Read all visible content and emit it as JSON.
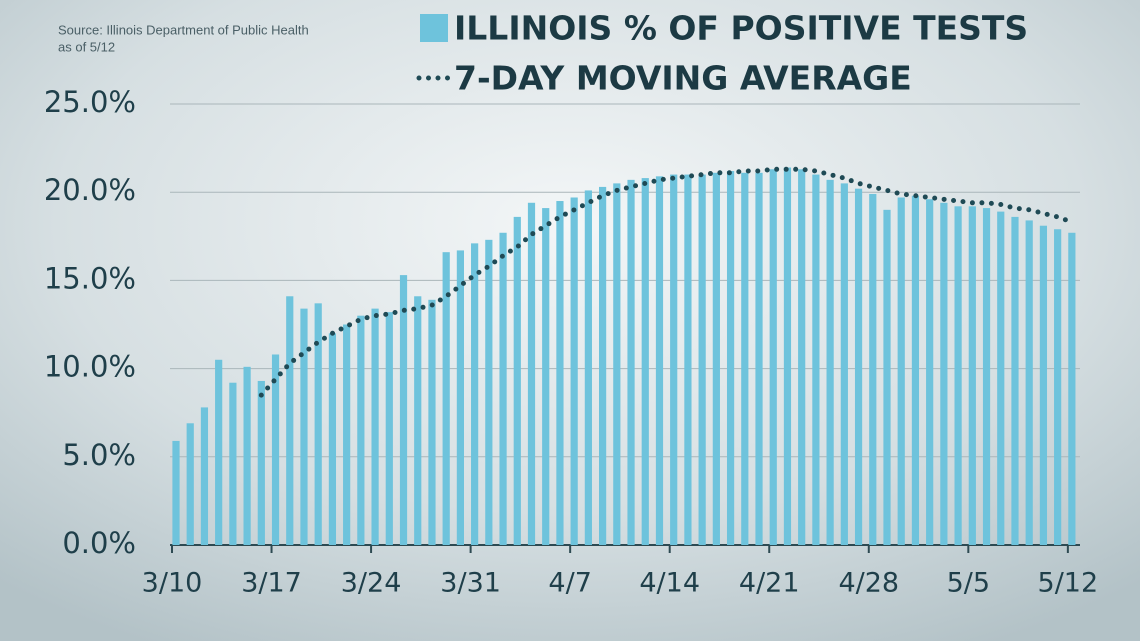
{
  "chart_data": {
    "type": "bar",
    "source": [
      "Source: Illinois Department of Public Health",
      "as of 5/12"
    ],
    "categories": [
      "3/10",
      null,
      null,
      null,
      null,
      null,
      null,
      "3/17",
      null,
      null,
      null,
      null,
      null,
      null,
      "3/24",
      null,
      null,
      null,
      null,
      null,
      null,
      "3/31",
      null,
      null,
      null,
      null,
      null,
      null,
      "4/7",
      null,
      null,
      null,
      null,
      null,
      null,
      "4/14",
      null,
      null,
      null,
      null,
      null,
      null,
      "4/21",
      null,
      null,
      null,
      null,
      null,
      null,
      "4/28",
      null,
      null,
      null,
      null,
      null,
      null,
      "5/5",
      null,
      null,
      null,
      null,
      null,
      null,
      "5/12"
    ],
    "series": [
      {
        "name": "ILLINOIS % OF POSITIVE TESTS",
        "color": "#6ec3dc",
        "type": "bar",
        "values": [
          5.9,
          6.9,
          7.8,
          10.5,
          9.2,
          10.1,
          9.3,
          10.8,
          14.1,
          13.4,
          13.7,
          12.0,
          12.5,
          13.0,
          13.4,
          13.2,
          15.3,
          14.1,
          13.9,
          16.6,
          16.7,
          17.1,
          17.3,
          17.7,
          18.6,
          19.4,
          19.1,
          19.5,
          19.7,
          20.1,
          20.3,
          20.5,
          20.7,
          20.8,
          20.9,
          21.0,
          21.0,
          21.0,
          21.1,
          21.2,
          21.1,
          21.1,
          21.3,
          21.4,
          21.3,
          21.0,
          20.7,
          20.5,
          20.2,
          19.9,
          19.0,
          19.7,
          19.8,
          19.6,
          19.4,
          19.2,
          19.2,
          19.1,
          18.9,
          18.6,
          18.4,
          18.1,
          17.9,
          17.7
        ]
      },
      {
        "name": "7-DAY MOVING AVERAGE",
        "color": "#1f4a55",
        "type": "line",
        "values": [
          null,
          null,
          null,
          null,
          null,
          null,
          8.5,
          9.4,
          10.3,
          10.9,
          11.5,
          12.0,
          12.4,
          12.8,
          13.0,
          13.1,
          13.3,
          13.4,
          13.6,
          14.1,
          14.7,
          15.3,
          15.8,
          16.4,
          16.9,
          17.6,
          18.1,
          18.6,
          19.0,
          19.4,
          19.8,
          20.1,
          20.3,
          20.5,
          20.7,
          20.8,
          20.9,
          21.0,
          21.1,
          21.1,
          21.2,
          21.2,
          21.3,
          21.3,
          21.3,
          21.2,
          21.0,
          20.8,
          20.5,
          20.3,
          20.1,
          19.9,
          19.8,
          19.7,
          19.6,
          19.5,
          19.4,
          19.4,
          19.3,
          19.1,
          19.0,
          18.8,
          18.6,
          18.3
        ]
      }
    ],
    "ylim": [
      0,
      25
    ],
    "yticks": [
      {
        "value": 0,
        "label": "0.0%"
      },
      {
        "value": 5,
        "label": "5.0%"
      },
      {
        "value": 10,
        "label": "10.0%"
      },
      {
        "value": 15,
        "label": "15.0%"
      },
      {
        "value": 20,
        "label": "20.0%"
      },
      {
        "value": 25,
        "label": "25.0%"
      }
    ],
    "grid": true
  }
}
